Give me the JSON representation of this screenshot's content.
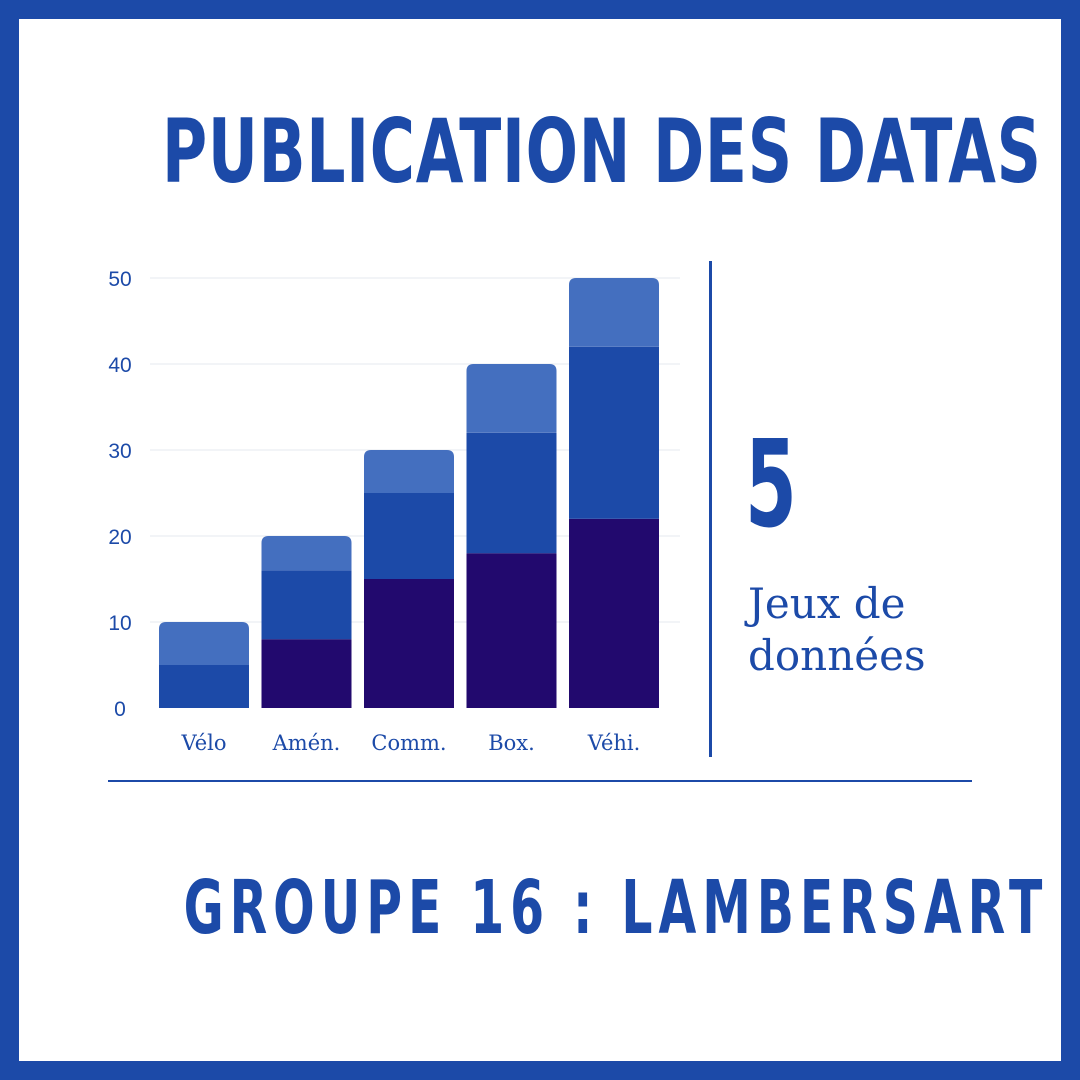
{
  "header": {
    "title": "PUBLICATION DES DATAS"
  },
  "stat": {
    "value": "5",
    "label_line1": "Jeux de",
    "label_line2": "données"
  },
  "footer": {
    "group_label": "GROUPE 16 : LAMBERSART"
  },
  "colors": {
    "border": "#1c4aa8",
    "text": "#1c4aa8",
    "series_dark": "#22096e",
    "series_mid": "#1c4aa8",
    "series_light": "#446fbf",
    "gridline": "#e6e9ef"
  },
  "chart_data": {
    "type": "bar",
    "stacked": true,
    "categories": [
      "Vélo",
      "Amén.",
      "Comm.",
      "Box.",
      "Véhi."
    ],
    "series": [
      {
        "values": [
          0,
          8,
          15,
          18,
          22
        ],
        "color": "#22096e"
      },
      {
        "values": [
          5,
          8,
          10,
          14,
          20
        ],
        "color": "#1c4aa8"
      },
      {
        "values": [
          5,
          4,
          5,
          8,
          8
        ],
        "color": "#446fbf"
      }
    ],
    "y_ticks": [
      "0",
      "10",
      "20",
      "30",
      "40",
      "50"
    ],
    "ylim": [
      0,
      50
    ],
    "grid": true,
    "legend": "none"
  }
}
